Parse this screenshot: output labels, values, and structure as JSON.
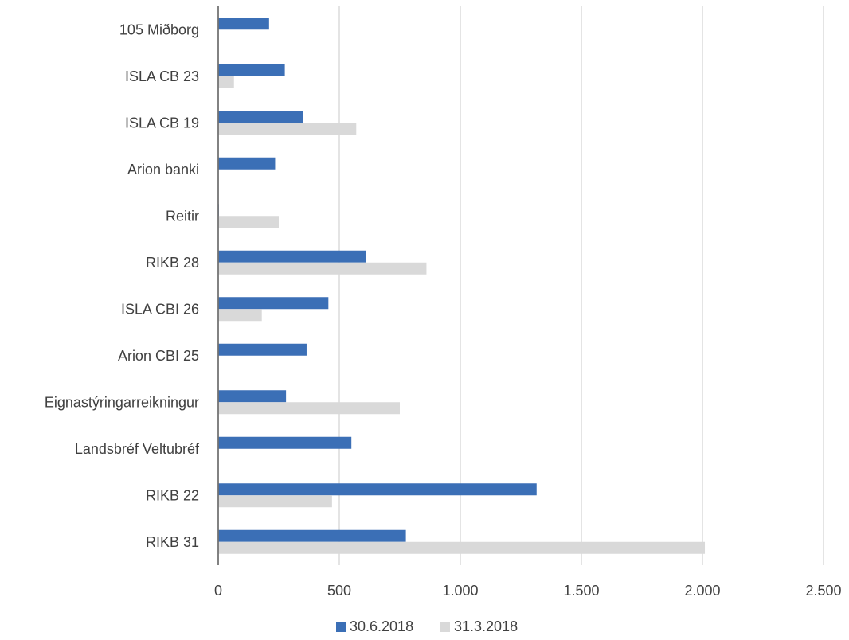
{
  "chart_data": {
    "type": "bar",
    "orientation": "horizontal",
    "categories": [
      "105 Miðborg",
      "ISLA CB 23",
      "ISLA CB 19",
      "Arion banki",
      "Reitir",
      "RIKB 28",
      "ISLA CBI 26",
      "Arion CBI 25",
      "Eignastýringarreikningur",
      "Landsbréf Veltubréf",
      "RIKB 22",
      "RIKB 31"
    ],
    "series": [
      {
        "name": "30.6.2018",
        "color": "#3b6fb6",
        "values": [
          210,
          275,
          350,
          235,
          3,
          610,
          455,
          365,
          280,
          550,
          1315,
          775
        ]
      },
      {
        "name": "31.3.2018",
        "color": "#d9d9d9",
        "values": [
          0,
          65,
          570,
          0,
          250,
          860,
          180,
          0,
          750,
          0,
          470,
          2010
        ]
      }
    ],
    "xlim": [
      0,
      2500
    ],
    "x_ticks": [
      "0",
      "500",
      "1.000",
      "1.500",
      "2.000",
      "2.500"
    ],
    "x_tick_values": [
      0,
      500,
      1000,
      1500,
      2000,
      2500
    ],
    "gridlines": "vertical",
    "legend_position": "bottom",
    "title": "",
    "xlabel": "",
    "ylabel": ""
  }
}
